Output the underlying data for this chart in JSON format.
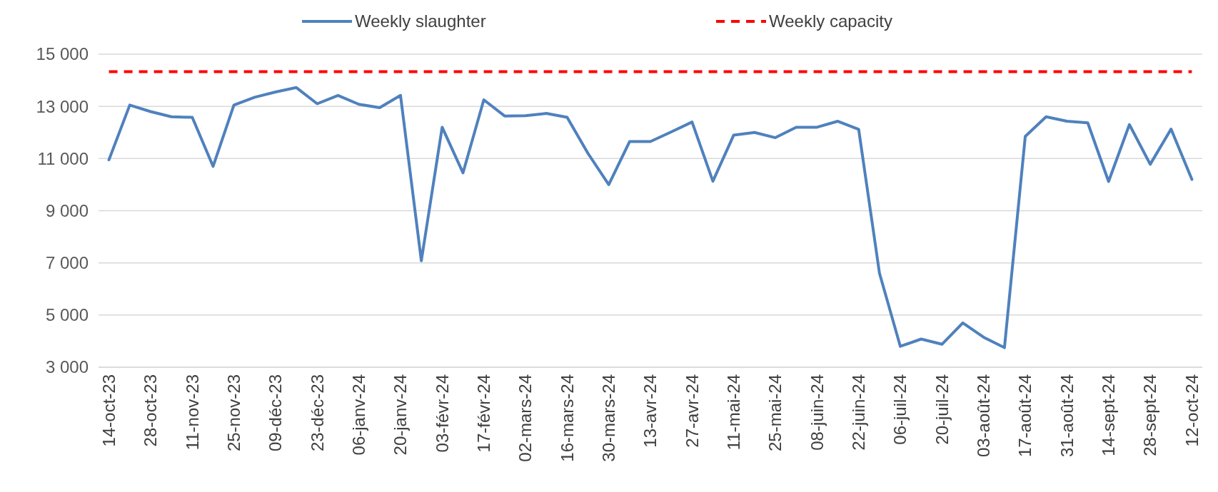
{
  "chart_data": {
    "type": "line",
    "categories": [
      "14-oct-23",
      null,
      "28-oct-23",
      null,
      "11-nov-23",
      null,
      "25-nov-23",
      null,
      "09-déc-23",
      null,
      "23-déc-23",
      null,
      "06-janv-24",
      null,
      "20-janv-24",
      null,
      "03-févr-24",
      null,
      "17-févr-24",
      null,
      "02-mars-24",
      null,
      "16-mars-24",
      null,
      "30-mars-24",
      null,
      "13-avr-24",
      null,
      "27-avr-24",
      null,
      "11-mai-24",
      null,
      "25-mai-24",
      null,
      "08-juin-24",
      null,
      "22-juin-24",
      null,
      "06-juil-24",
      null,
      "20-juil-24",
      null,
      "03-août-24",
      null,
      "17-août-24",
      null,
      "31-août-24",
      null,
      "14-sept-24",
      null,
      "28-sept-24",
      null,
      "12-oct-24"
    ],
    "series": [
      {
        "name": "Weekly slaughter",
        "color": "#4f81bd",
        "line_style": "solid",
        "values": [
          10950,
          13050,
          12800,
          12600,
          12580,
          10700,
          13050,
          13350,
          13550,
          13720,
          13100,
          13420,
          13080,
          12950,
          13420,
          7080,
          12200,
          10450,
          13250,
          12630,
          12640,
          12730,
          12580,
          11200,
          10000,
          11650,
          11650,
          12020,
          12400,
          10130,
          11900,
          12000,
          11800,
          12200,
          12200,
          12430,
          12120,
          6600,
          3800,
          4080,
          3880,
          4700,
          4150,
          3750,
          11850,
          12600,
          12430,
          12370,
          10120,
          12300,
          10780,
          12130,
          10200
        ]
      },
      {
        "name": "Weekly capacity",
        "color": "#ff0000",
        "line_style": "dashed",
        "values": [
          14330,
          14330,
          14330,
          14330,
          14330,
          14330,
          14330,
          14330,
          14330,
          14330,
          14330,
          14330,
          14330,
          14330,
          14330,
          14330,
          14330,
          14330,
          14330,
          14330,
          14330,
          14330,
          14330,
          14330,
          14330,
          14330,
          14330,
          14330,
          14330,
          14330,
          14330,
          14330,
          14330,
          14330,
          14330,
          14330,
          14330,
          14330,
          14330,
          14330,
          14330,
          14330,
          14330,
          14330,
          14330,
          14330,
          14330,
          14330,
          14330,
          14330,
          14330,
          14330,
          14330
        ]
      }
    ],
    "ylim": [
      3000,
      15000
    ],
    "yticks": [
      {
        "value": 3000,
        "label": "3 000"
      },
      {
        "value": 5000,
        "label": "5 000"
      },
      {
        "value": 7000,
        "label": "7 000"
      },
      {
        "value": 9000,
        "label": "9 000"
      },
      {
        "value": 11000,
        "label": "11 000"
      },
      {
        "value": 13000,
        "label": "13 000"
      },
      {
        "value": 15000,
        "label": "15 000"
      }
    ],
    "grid": "y",
    "legend": "top",
    "marker": "none"
  }
}
